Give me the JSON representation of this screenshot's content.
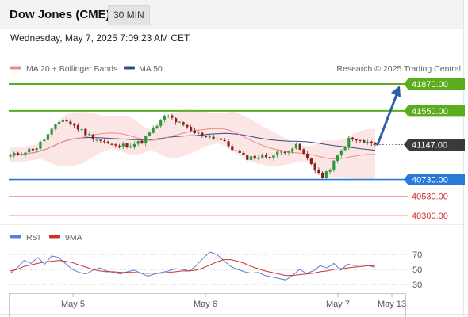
{
  "header": {
    "instrument": "Dow Jones (CME)",
    "timeframe": "30 MIN",
    "datetime": "Wednesday, May 7, 2025 7:09:23 AM CET"
  },
  "legend": {
    "ma20": "MA 20 + Bollinger Bands",
    "ma50": "MA 50",
    "credit": "Research © 2025 Trading Central",
    "rsi": "RSI",
    "rsi_ma": "9MA"
  },
  "colors": {
    "resistance": "#5cad1d",
    "support": "#2979d9",
    "support_minor": "#f39191",
    "current": "#3a3a3a",
    "ma20_band": "#f08a8a",
    "ma50": "#2f4f86",
    "candle_up": "#2e9a3e",
    "candle_down": "#8a1f1f",
    "rsi": "#5b7fd4",
    "rsi_ma": "#d0302b",
    "arrow": "#2e5fa0"
  },
  "chart_data": [
    {
      "type": "candlestick",
      "title": "Dow Jones (CME)",
      "x_ticks": [
        "May 5",
        "May 6",
        "May 7",
        "May 13"
      ],
      "ylim": [
        40180,
        42020
      ],
      "price_levels": [
        {
          "value": 41870,
          "label": "41870.00",
          "kind": "resistance"
        },
        {
          "value": 41550,
          "label": "41550.00",
          "kind": "resistance"
        },
        {
          "value": 41147,
          "label": "41147.00",
          "kind": "current"
        },
        {
          "value": 40730,
          "label": "40730.00",
          "kind": "support"
        },
        {
          "value": 40530,
          "label": "40530.00",
          "kind": "support-minor"
        },
        {
          "value": 40300,
          "label": "40300.00",
          "kind": "support-minor"
        }
      ],
      "projection": {
        "from": 41147,
        "to": 41870
      },
      "key_closes": [
        41010,
        41110,
        41460,
        41260,
        41120,
        41170,
        41500,
        41290,
        41220,
        40990,
        41010,
        41130,
        40740,
        41210,
        41147
      ]
    },
    {
      "type": "line",
      "title": "RSI",
      "yticks": [
        70,
        50,
        30
      ],
      "ylim": [
        20,
        80
      ],
      "series": [
        {
          "name": "RSI",
          "values": [
            45,
            52,
            62,
            58,
            66,
            57,
            68,
            66,
            58,
            50,
            46,
            44,
            49,
            52,
            48,
            46,
            44,
            47,
            49,
            45,
            41,
            44,
            46,
            48,
            51,
            50,
            48,
            55,
            65,
            73,
            70,
            62,
            54,
            50,
            47,
            45,
            46,
            42,
            40,
            38,
            36,
            42,
            50,
            45,
            48,
            55,
            52,
            58,
            49,
            57,
            55,
            56,
            55,
            53
          ]
        },
        {
          "name": "9MA",
          "values": [
            48,
            50,
            54,
            56,
            58,
            60,
            61,
            62,
            61,
            59,
            56,
            53,
            50,
            48,
            47,
            47,
            46,
            46,
            46,
            45,
            45,
            45,
            45,
            46,
            47,
            48,
            48,
            49,
            52,
            56,
            60,
            63,
            63,
            61,
            58,
            54,
            51,
            48,
            46,
            44,
            42,
            42,
            43,
            44,
            45,
            47,
            48,
            50,
            51,
            52,
            53,
            54,
            55,
            55
          ]
        }
      ]
    }
  ]
}
